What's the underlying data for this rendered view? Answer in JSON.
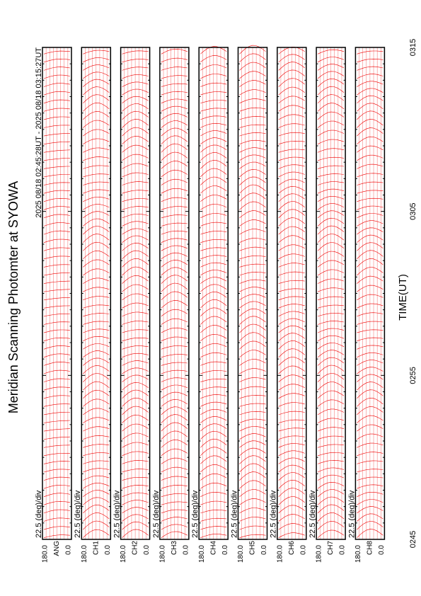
{
  "title": "Meridian Scanning Photomter at SYOWA",
  "time_range": "2025 08/18 02:45:28UT - 2025 08/18 03:15:27UT",
  "x_axis_label": "TIME(UT)",
  "time_ticks": [
    "0245",
    "0255",
    "0305",
    "0315"
  ],
  "panels": [
    {
      "label": "ANG",
      "scale": "22.5 (deg)/div",
      "ymax": "180.0",
      "ymin": "0.0"
    },
    {
      "label": "CH1",
      "scale": "22.5 (deg)/div",
      "ymax": "180.0",
      "ymin": "0.0"
    },
    {
      "label": "CH2",
      "scale": "22.5 (deg)/div",
      "ymax": "180.0",
      "ymin": "0.0"
    },
    {
      "label": "CH3",
      "scale": "22.5 (deg)/div",
      "ymax": "180.0",
      "ymin": "0.0"
    },
    {
      "label": "CH4",
      "scale": "22.5 (deg)/div",
      "ymax": "180.0",
      "ymin": "0.0"
    },
    {
      "label": "CH5",
      "scale": "22.5 (deg)/div",
      "ymax": "180.0",
      "ymin": "0.0"
    },
    {
      "label": "CH6",
      "scale": "22.5 (deg)/div",
      "ymax": "180.0",
      "ymin": "0.0"
    },
    {
      "label": "CH7",
      "scale": "22.5 (deg)/div",
      "ymax": "180.0",
      "ymin": "0.0"
    },
    {
      "label": "CH8",
      "scale": "22.5 (deg)/div",
      "ymax": "180.0",
      "ymin": "0.0"
    }
  ]
}
